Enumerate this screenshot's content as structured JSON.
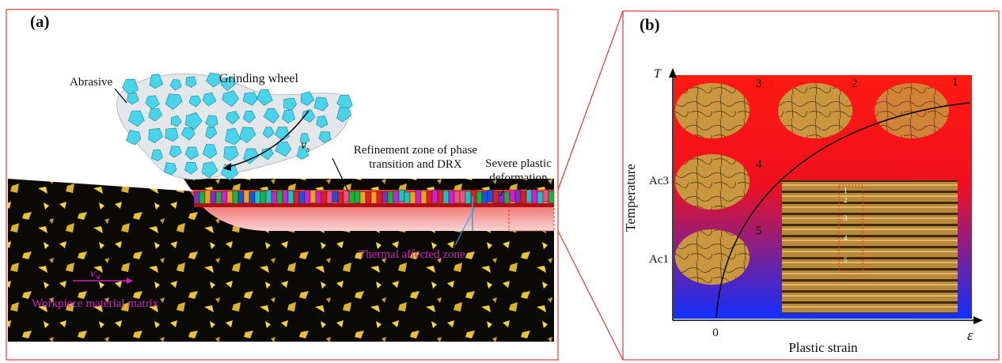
{
  "panel_a": {
    "label": "(a)",
    "abrasive": "Abrasive",
    "grinding_wheel": "Grinding wheel",
    "refinement_zone": [
      "Refinement zone of phase",
      "transition and DRX"
    ],
    "severe_deformation": [
      "Severe plastic",
      "deformation"
    ],
    "wheel_speed": {
      "symbol": "v",
      "subscript": "s"
    },
    "work_speed": {
      "symbol": "v",
      "subscript": "w"
    },
    "thermal_zone": "Thermal affected zone",
    "matrix": "Workpiece material matrix"
  },
  "panel_b": {
    "label": "(b)",
    "y_axis_symbol": "T",
    "y_axis_title": "Temperature",
    "y_labels": [
      "Ac3",
      "Ac1"
    ],
    "x_origin": "0",
    "x_axis_title": "Plastic strain",
    "x_axis_symbol": "ε",
    "stage_labels": [
      "1",
      "2",
      "3",
      "4",
      "5"
    ],
    "inset_labels": [
      "1",
      "2",
      "3",
      "4",
      "5"
    ]
  }
}
